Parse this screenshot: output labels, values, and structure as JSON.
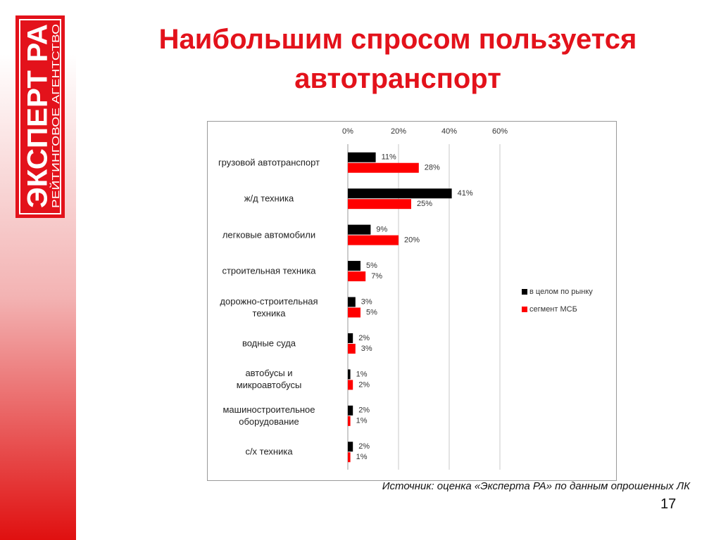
{
  "logo": {
    "name": "ЭКСПЕРТ РА",
    "tagline": "РЕЙТИНГОВОЕ АГЕНТСТВО"
  },
  "title": "Наибольшим спросом пользуется\nавтотранспорт",
  "chart_data": {
    "type": "bar",
    "orientation": "horizontal",
    "categories": [
      "грузовой автотранспорт",
      "ж/д техника",
      "легковые автомобили",
      "строительная техника",
      "дорожно-строительная\nтехника",
      "водные суда",
      "автобусы и\nмикроавтобусы",
      "машиностроительное\nоборудование",
      "с/х техника"
    ],
    "series": [
      {
        "name": "в целом по рынку",
        "color": "#000000",
        "values": [
          11,
          41,
          9,
          5,
          3,
          2,
          1,
          2,
          2
        ],
        "value_labels": [
          "11%",
          "41%",
          "9%",
          "5%",
          "3%",
          "2%",
          "1%",
          "2%",
          "2%"
        ]
      },
      {
        "name": "сегмент МСБ",
        "color": "#ff0000",
        "values": [
          28,
          25,
          20,
          7,
          5,
          3,
          2,
          1,
          1
        ],
        "value_labels": [
          "28%",
          "25%",
          "20%",
          "7%",
          "5%",
          "3%",
          "2%",
          "1%",
          "1%"
        ]
      }
    ],
    "xlim": [
      0,
      60
    ],
    "xticks": [
      {
        "value": 0,
        "label": "0%"
      },
      {
        "value": 20,
        "label": "20%"
      },
      {
        "value": 40,
        "label": "40%"
      },
      {
        "value": 60,
        "label": "60%"
      }
    ],
    "grid": true,
    "legend": "right"
  },
  "source": "Источник: оценка «Эксперта РА» по данным опрошенных ЛК",
  "page_number": "17"
}
